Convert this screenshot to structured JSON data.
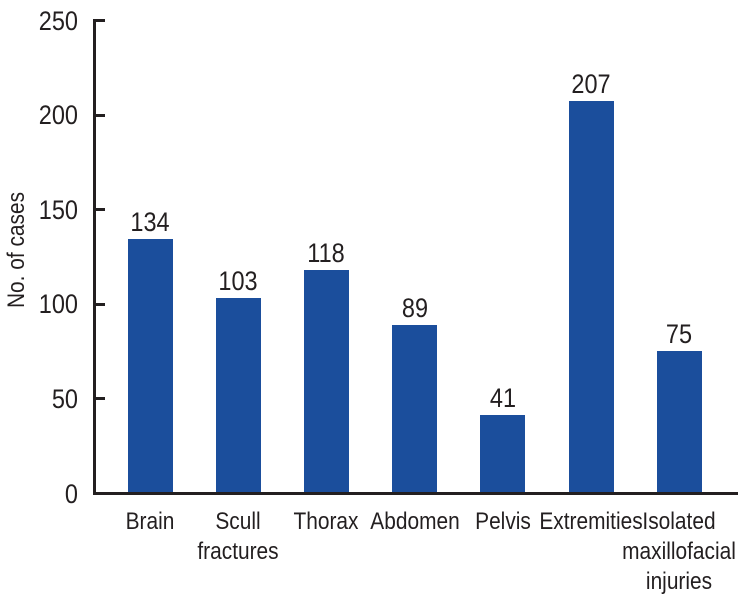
{
  "figure": {
    "background_color": "#FFFFFF"
  },
  "chart_data": {
    "type": "bar",
    "title": "",
    "xlabel": "",
    "ylabel": "No. of cases",
    "categories": [
      "Brain",
      "Scull fractures",
      "Thorax",
      "Abdomen",
      "Pelvis",
      "Extremities",
      "Isolated maxillofacial injuries"
    ],
    "category_lines": [
      [
        "Brain"
      ],
      [
        "Scull",
        "fractures"
      ],
      [
        "Thorax"
      ],
      [
        "Abdomen"
      ],
      [
        "Pelvis"
      ],
      [
        "Extremities"
      ],
      [
        "Isolated",
        "maxillofacial",
        "injuries"
      ]
    ],
    "values": [
      134,
      103,
      118,
      89,
      41,
      207,
      75
    ],
    "ylim": [
      0,
      250
    ],
    "yticks": [
      0,
      50,
      100,
      150,
      200,
      250
    ],
    "grid": false,
    "legend": "none",
    "value_labels_shown": true,
    "bar_color": "#1B4E9C",
    "axis_color": "#231F20",
    "text_color": "#231F20"
  }
}
